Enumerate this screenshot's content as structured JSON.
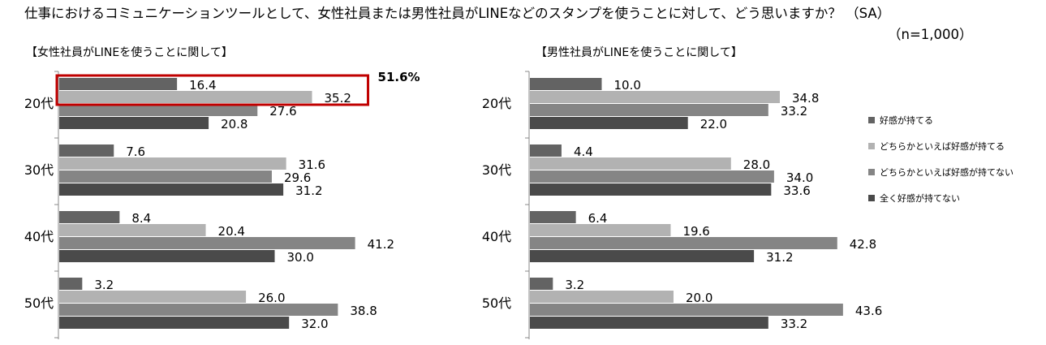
{
  "chart_data": {
    "type": "bar",
    "orientation": "horizontal",
    "title": "仕事におけるコミュニケーションツールとして、女性社員または男性社員がLINEなどのスタンプを使うことに対して、どう思いますか？ （SA）",
    "sample_size": "（n=1,000）",
    "legend_position": "right",
    "grid": false,
    "series_names": [
      "好感が持てる",
      "どちらかといえば好感が持てる",
      "どちらかといえば好感が持てない",
      "全く好感が持てない"
    ],
    "series_colors": [
      "#636363",
      "#b2b2b2",
      "#858585",
      "#4a4a4a"
    ],
    "panels": [
      {
        "subtitle": "【女性社員がLINEを使うことに関して】",
        "categories": [
          "20代",
          "30代",
          "40代",
          "50代"
        ],
        "values": [
          [
            16.4,
            35.2,
            27.6,
            20.8
          ],
          [
            7.6,
            31.6,
            29.6,
            31.2
          ],
          [
            8.4,
            20.4,
            41.2,
            30.0
          ],
          [
            3.2,
            26.0,
            38.8,
            32.0
          ]
        ],
        "xlim": [
          0,
          50
        ],
        "annotation": {
          "label": "51.6%",
          "category": "20代",
          "series": [
            "好感が持てる",
            "どちらかといえば好感が持てる"
          ],
          "color": "#c00000"
        }
      },
      {
        "subtitle": "【男性社員がLINEを使うことに関して】",
        "categories": [
          "20代",
          "30代",
          "40代",
          "50代"
        ],
        "values": [
          [
            10.0,
            34.8,
            33.2,
            22.0
          ],
          [
            4.4,
            28.0,
            34.0,
            33.6
          ],
          [
            6.4,
            19.6,
            42.8,
            31.2
          ],
          [
            3.2,
            20.0,
            43.6,
            33.2
          ]
        ],
        "xlim": [
          0,
          50
        ]
      }
    ]
  }
}
